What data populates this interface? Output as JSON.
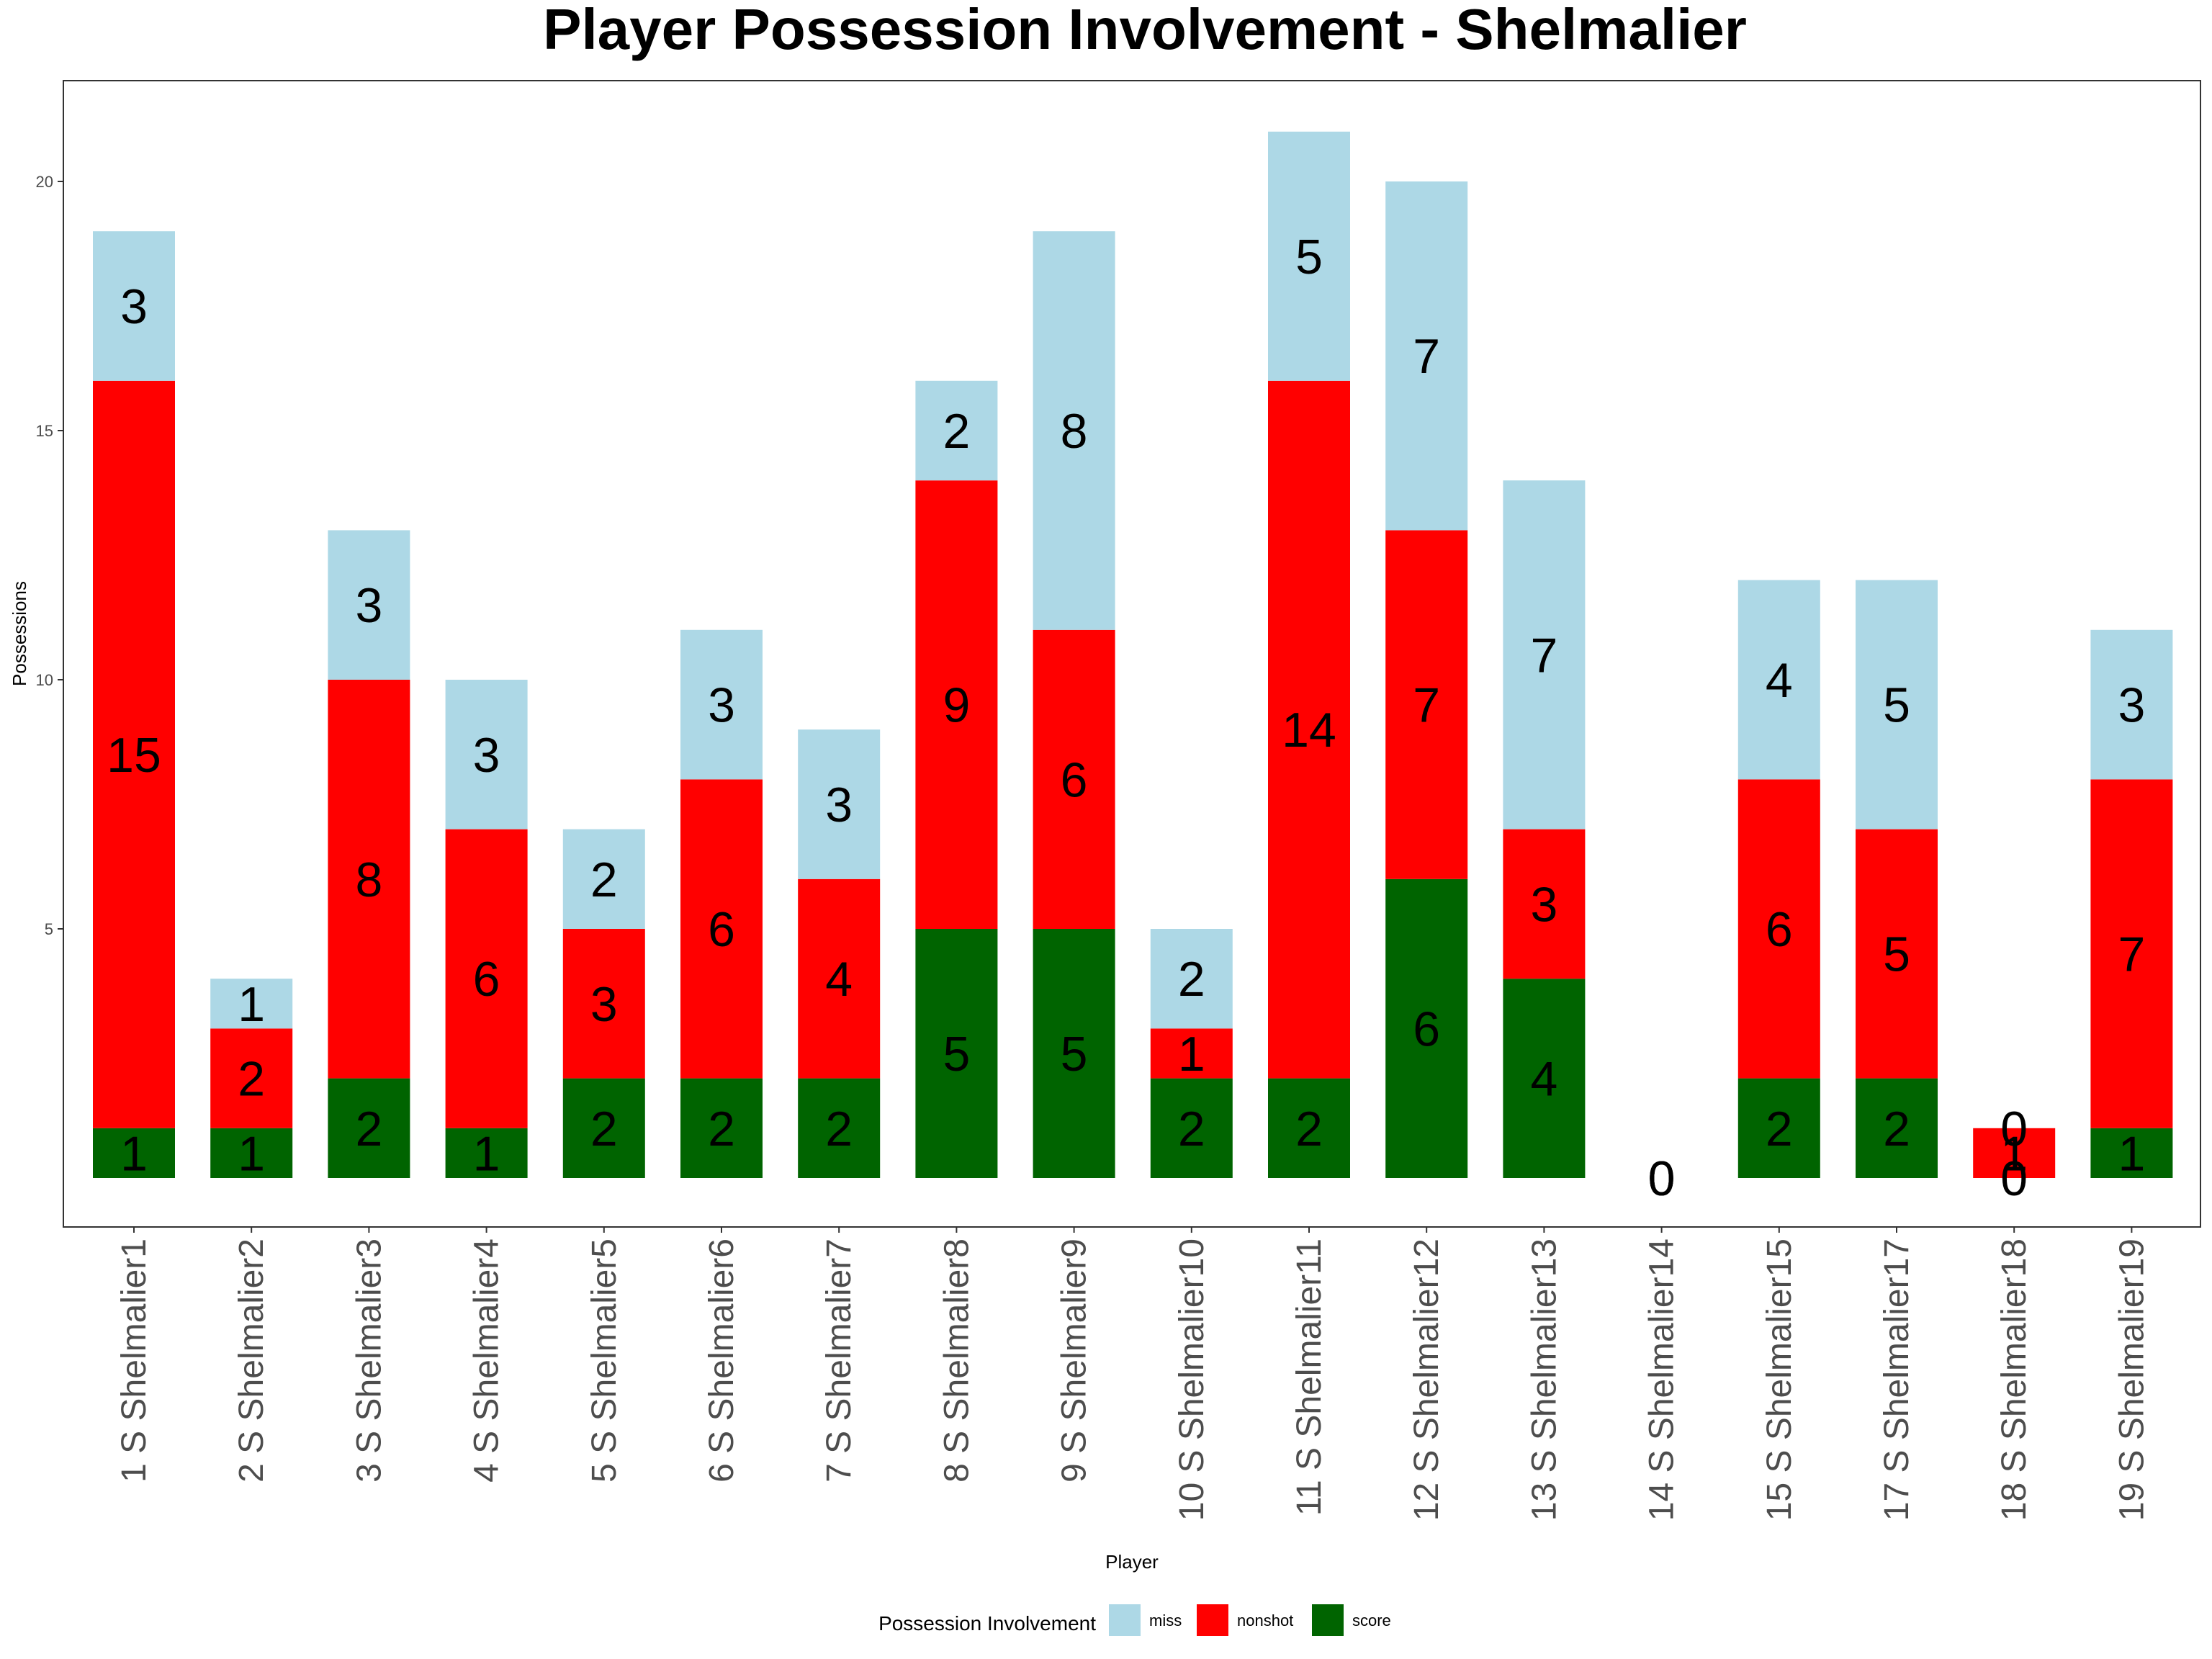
{
  "chart_data": {
    "type": "bar",
    "stacked": true,
    "title": "Player Possession Involvement - Shelmalier",
    "xlabel": "Player",
    "ylabel": "Possessions",
    "ylim": [
      -1,
      23
    ],
    "yticks": [
      5,
      10,
      15,
      20
    ],
    "grid": false,
    "legend_position": "bottom",
    "legend_title": "Possession Involvement",
    "categories": [
      "1 S Shelmalier1",
      "2 S Shelmalier2",
      "3 S Shelmalier3",
      "4 S Shelmalier4",
      "5 S Shelmalier5",
      "6 S Shelmalier6",
      "7 S Shelmalier7",
      "8 S Shelmalier8",
      "9 S Shelmalier9",
      "10 S Shelmalier10",
      "11 S Shelmalier11",
      "12 S Shelmalier12",
      "13 S Shelmalier13",
      "14 S Shelmalier14",
      "15 S Shelmalier15",
      "17 S Shelmalier17",
      "18 S Shelmalier18",
      "19 S Shelmalier19"
    ],
    "series": [
      {
        "name": "score",
        "color": "#006400",
        "values": [
          1,
          1,
          2,
          1,
          2,
          2,
          2,
          5,
          5,
          2,
          2,
          6,
          4,
          0,
          2,
          2,
          0,
          1
        ]
      },
      {
        "name": "nonshot",
        "color": "#ff0000",
        "values": [
          15,
          2,
          8,
          6,
          3,
          6,
          4,
          9,
          6,
          1,
          14,
          7,
          3,
          0,
          6,
          5,
          1,
          7
        ]
      },
      {
        "name": "miss",
        "color": "#add8e6",
        "values": [
          3,
          1,
          3,
          3,
          2,
          3,
          3,
          2,
          8,
          2,
          5,
          7,
          7,
          0,
          4,
          5,
          0,
          3
        ]
      }
    ],
    "legend_order": [
      "miss",
      "nonshot",
      "score"
    ]
  }
}
